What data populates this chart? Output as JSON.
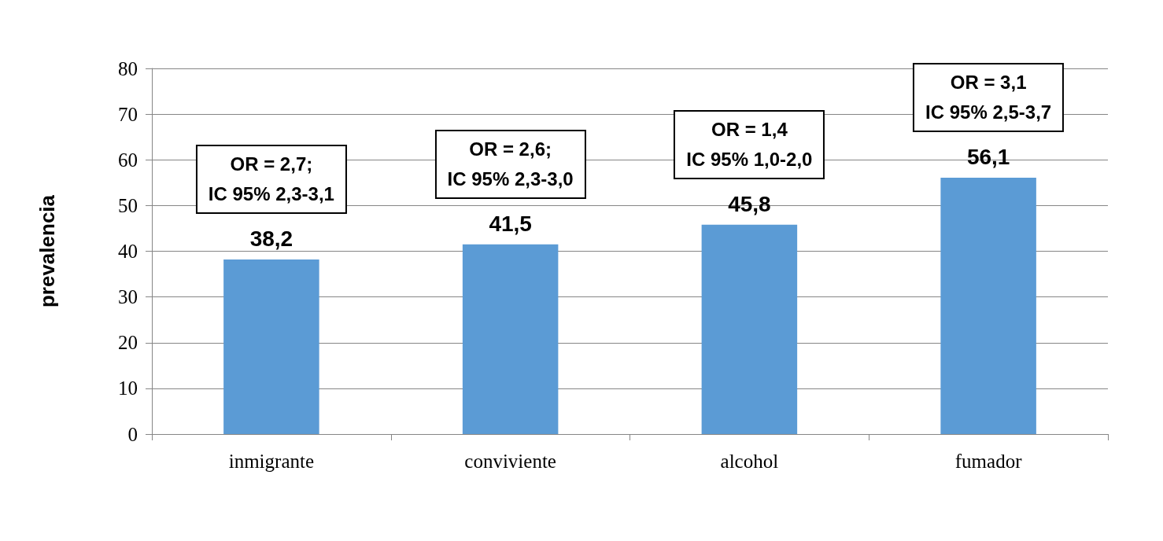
{
  "chart_data": {
    "type": "bar",
    "ylabel": "prevalencia",
    "categories": [
      "inmigrante",
      "conviviente",
      "alcohol",
      "fumador"
    ],
    "values": [
      38.2,
      41.5,
      45.8,
      56.1
    ],
    "value_labels": [
      "38,2",
      "41,5",
      "45,8",
      "56,1"
    ],
    "color": "#5b9bd5",
    "ylim": [
      0,
      80
    ],
    "yticks": [
      0,
      10,
      20,
      30,
      40,
      50,
      60,
      70,
      80
    ],
    "grid": "y",
    "annotations": [
      "OR = 2,7;\nIC 95% 2,3-3,1",
      "OR = 2,6;\nIC 95% 2,3-3,0",
      "OR = 1,4\nIC 95% 1,0-2,0",
      "OR = 3,1\nIC 95% 2,5-3,7"
    ]
  }
}
